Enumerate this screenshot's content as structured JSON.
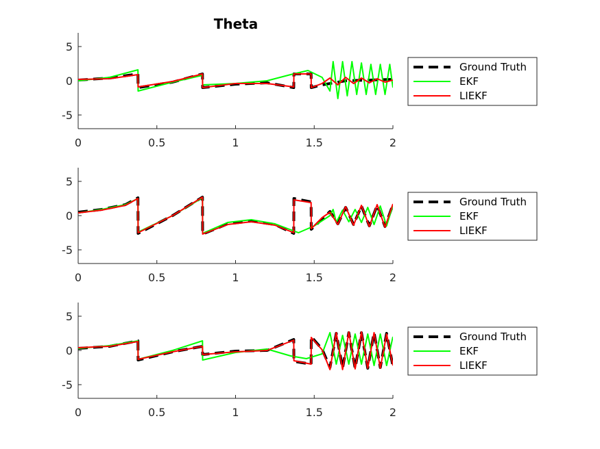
{
  "figure": {
    "title": "Theta"
  },
  "legend_entries": [
    {
      "label": "Ground Truth",
      "color": "#000000",
      "style": "dashed"
    },
    {
      "label": "EKF",
      "color": "#00ff00",
      "style": "solid"
    },
    {
      "label": "LIEKF",
      "color": "#ff0000",
      "style": "solid"
    }
  ],
  "colors": {
    "ground_truth": "#000000",
    "ekf": "#00ff00",
    "liekf": "#ff0000",
    "axis": "#262626"
  },
  "chart_data": [
    {
      "type": "line",
      "title": "Theta",
      "xlim": [
        0,
        2
      ],
      "ylim": [
        -7,
        7
      ],
      "x_ticks": [
        0,
        0.5,
        1,
        1.5,
        2
      ],
      "x_tick_labels": [
        "0",
        "0.5",
        "1",
        "1.5",
        "2"
      ],
      "y_ticks": [
        -5,
        0,
        5
      ],
      "y_tick_labels": [
        "-5",
        "0",
        "5"
      ],
      "legend_position": "right",
      "series": [
        {
          "name": "Ground Truth",
          "color": "#000000",
          "dashed": true,
          "points": [
            [
              0,
              0.1
            ],
            [
              0.2,
              0.4
            ],
            [
              0.38,
              1.0
            ],
            [
              0.381,
              -1.0
            ],
            [
              0.6,
              -0.2
            ],
            [
              0.79,
              1.0
            ],
            [
              0.791,
              -1.0
            ],
            [
              1.0,
              -0.5
            ],
            [
              1.2,
              -0.3
            ],
            [
              1.37,
              -1.0
            ],
            [
              1.371,
              1.0
            ],
            [
              1.48,
              1.0
            ],
            [
              1.481,
              -1.0
            ],
            [
              1.55,
              -0.6
            ],
            [
              1.7,
              0.0
            ],
            [
              2.0,
              0.2
            ]
          ]
        },
        {
          "name": "EKF",
          "color": "#00ff00",
          "dashed": false,
          "points": [
            [
              0,
              0.0
            ],
            [
              0.2,
              0.5
            ],
            [
              0.38,
              1.6
            ],
            [
              0.381,
              -1.5
            ],
            [
              0.6,
              -0.2
            ],
            [
              0.79,
              0.8
            ],
            [
              0.791,
              -0.6
            ],
            [
              1.0,
              -0.4
            ],
            [
              1.2,
              0.0
            ],
            [
              1.35,
              0.9
            ],
            [
              1.46,
              1.5
            ],
            [
              1.55,
              0.5
            ],
            [
              1.6,
              -1.5
            ],
            [
              1.62,
              2.8
            ],
            [
              1.65,
              -2.6
            ],
            [
              1.68,
              2.8
            ],
            [
              1.71,
              -2.2
            ],
            [
              1.74,
              2.8
            ],
            [
              1.77,
              -2.0
            ],
            [
              1.8,
              2.6
            ],
            [
              1.83,
              -2.0
            ],
            [
              1.86,
              2.4
            ],
            [
              1.89,
              -2.0
            ],
            [
              1.92,
              2.4
            ],
            [
              1.95,
              -2.0
            ],
            [
              1.98,
              2.4
            ],
            [
              2.0,
              -1.0
            ]
          ]
        },
        {
          "name": "LIEKF",
          "color": "#ff0000",
          "dashed": false,
          "points": [
            [
              0,
              0.2
            ],
            [
              0.2,
              0.3
            ],
            [
              0.38,
              0.9
            ],
            [
              0.381,
              -0.9
            ],
            [
              0.6,
              -0.1
            ],
            [
              0.79,
              1.0
            ],
            [
              0.791,
              -1.0
            ],
            [
              1.0,
              -0.4
            ],
            [
              1.2,
              -0.4
            ],
            [
              1.37,
              -0.9
            ],
            [
              1.371,
              1.0
            ],
            [
              1.48,
              1.0
            ],
            [
              1.481,
              -1.0
            ],
            [
              1.55,
              -0.4
            ],
            [
              1.6,
              0.4
            ],
            [
              1.65,
              -0.6
            ],
            [
              1.7,
              0.5
            ],
            [
              1.75,
              -0.4
            ],
            [
              1.8,
              0.4
            ],
            [
              1.85,
              -0.3
            ],
            [
              1.9,
              0.3
            ],
            [
              1.95,
              -0.2
            ],
            [
              2.0,
              0.1
            ]
          ]
        }
      ]
    },
    {
      "type": "line",
      "title": "",
      "xlim": [
        0,
        2
      ],
      "ylim": [
        -7,
        7
      ],
      "x_ticks": [
        0,
        0.5,
        1,
        1.5,
        2
      ],
      "x_tick_labels": [
        "0",
        "0.5",
        "1",
        "1.5",
        "2"
      ],
      "y_ticks": [
        -5,
        0,
        5
      ],
      "y_tick_labels": [
        "-5",
        "0",
        "5"
      ],
      "legend_position": "right",
      "series": [
        {
          "name": "Ground Truth",
          "color": "#000000",
          "dashed": true,
          "points": [
            [
              0,
              0.5
            ],
            [
              0.15,
              0.9
            ],
            [
              0.3,
              1.6
            ],
            [
              0.38,
              2.6
            ],
            [
              0.381,
              -2.6
            ],
            [
              0.6,
              0.0
            ],
            [
              0.79,
              2.7
            ],
            [
              0.791,
              -2.7
            ],
            [
              0.95,
              -1.2
            ],
            [
              1.1,
              -0.8
            ],
            [
              1.25,
              -1.3
            ],
            [
              1.37,
              -2.6
            ],
            [
              1.371,
              2.5
            ],
            [
              1.48,
              2.0
            ],
            [
              1.481,
              -2.0
            ],
            [
              1.55,
              -0.5
            ],
            [
              1.6,
              0.6
            ],
            [
              1.65,
              -1.2
            ],
            [
              1.7,
              1.2
            ],
            [
              1.75,
              -1.3
            ],
            [
              1.8,
              1.4
            ],
            [
              1.85,
              -1.5
            ],
            [
              1.9,
              1.5
            ],
            [
              1.95,
              -1.6
            ],
            [
              2.0,
              1.6
            ]
          ]
        },
        {
          "name": "EKF",
          "color": "#00ff00",
          "dashed": false,
          "points": [
            [
              0,
              0.4
            ],
            [
              0.15,
              0.9
            ],
            [
              0.3,
              1.6
            ],
            [
              0.38,
              2.5
            ],
            [
              0.381,
              -2.4
            ],
            [
              0.6,
              0.0
            ],
            [
              0.79,
              2.6
            ],
            [
              0.791,
              -2.6
            ],
            [
              0.95,
              -1.0
            ],
            [
              1.1,
              -0.6
            ],
            [
              1.25,
              -1.2
            ],
            [
              1.4,
              -2.5
            ],
            [
              1.5,
              -1.5
            ],
            [
              1.6,
              0.0
            ],
            [
              1.62,
              0.9
            ],
            [
              1.64,
              -1.0
            ],
            [
              1.68,
              0.8
            ],
            [
              1.72,
              -0.9
            ],
            [
              1.76,
              0.9
            ],
            [
              1.8,
              -1.0
            ],
            [
              1.84,
              1.2
            ],
            [
              1.88,
              -1.3
            ],
            [
              1.92,
              1.4
            ],
            [
              1.96,
              -1.5
            ],
            [
              2.0,
              1.5
            ]
          ]
        },
        {
          "name": "LIEKF",
          "color": "#ff0000",
          "dashed": false,
          "points": [
            [
              0,
              0.4
            ],
            [
              0.15,
              0.8
            ],
            [
              0.3,
              1.5
            ],
            [
              0.38,
              2.5
            ],
            [
              0.381,
              -2.5
            ],
            [
              0.6,
              0.0
            ],
            [
              0.79,
              2.7
            ],
            [
              0.791,
              -2.7
            ],
            [
              0.95,
              -1.3
            ],
            [
              1.1,
              -0.9
            ],
            [
              1.25,
              -1.4
            ],
            [
              1.37,
              -2.5
            ],
            [
              1.371,
              2.3
            ],
            [
              1.48,
              1.9
            ],
            [
              1.481,
              -1.9
            ],
            [
              1.55,
              -0.3
            ],
            [
              1.6,
              0.5
            ],
            [
              1.65,
              -1.3
            ],
            [
              1.7,
              1.3
            ],
            [
              1.75,
              -1.4
            ],
            [
              1.8,
              1.5
            ],
            [
              1.85,
              -1.6
            ],
            [
              1.9,
              1.6
            ],
            [
              1.95,
              -1.7
            ],
            [
              2.0,
              1.7
            ]
          ]
        }
      ]
    },
    {
      "type": "line",
      "title": "",
      "xlim": [
        0,
        2
      ],
      "ylim": [
        -7,
        7
      ],
      "x_ticks": [
        0,
        0.5,
        1,
        1.5,
        2
      ],
      "x_tick_labels": [
        "0",
        "0.5",
        "1",
        "1.5",
        "2"
      ],
      "y_ticks": [
        -5,
        0,
        5
      ],
      "y_tick_labels": [
        "-5",
        "0",
        "5"
      ],
      "legend_position": "right",
      "series": [
        {
          "name": "Ground Truth",
          "color": "#000000",
          "dashed": true,
          "points": [
            [
              0,
              0.3
            ],
            [
              0.2,
              0.6
            ],
            [
              0.38,
              1.4
            ],
            [
              0.381,
              -1.4
            ],
            [
              0.6,
              -0.2
            ],
            [
              0.79,
              0.6
            ],
            [
              0.791,
              -0.6
            ],
            [
              1.0,
              -0.1
            ],
            [
              1.2,
              0.0
            ],
            [
              1.37,
              1.6
            ],
            [
              1.371,
              -1.6
            ],
            [
              1.48,
              -2.0
            ],
            [
              1.481,
              2.0
            ],
            [
              1.55,
              0.2
            ],
            [
              1.6,
              -2.5
            ],
            [
              1.64,
              2.5
            ],
            [
              1.68,
              -2.6
            ],
            [
              1.72,
              2.6
            ],
            [
              1.76,
              -2.6
            ],
            [
              1.8,
              2.6
            ],
            [
              1.84,
              -2.6
            ],
            [
              1.88,
              2.6
            ],
            [
              1.92,
              -2.5
            ],
            [
              1.96,
              2.5
            ],
            [
              2.0,
              -2.3
            ]
          ]
        },
        {
          "name": "EKF",
          "color": "#00ff00",
          "dashed": false,
          "points": [
            [
              0,
              0.3
            ],
            [
              0.2,
              0.7
            ],
            [
              0.38,
              1.4
            ],
            [
              0.381,
              -1.3
            ],
            [
              0.6,
              0.0
            ],
            [
              0.79,
              1.4
            ],
            [
              0.791,
              -1.4
            ],
            [
              1.0,
              -0.3
            ],
            [
              1.2,
              0.2
            ],
            [
              1.35,
              -0.8
            ],
            [
              1.45,
              -1.2
            ],
            [
              1.55,
              -0.5
            ],
            [
              1.6,
              2.6
            ],
            [
              1.64,
              -2.0
            ],
            [
              1.68,
              2.2
            ],
            [
              1.72,
              -2.0
            ],
            [
              1.76,
              2.4
            ],
            [
              1.8,
              -2.0
            ],
            [
              1.84,
              2.4
            ],
            [
              1.88,
              -2.2
            ],
            [
              1.92,
              2.4
            ],
            [
              1.96,
              -2.2
            ],
            [
              2.0,
              2.0
            ]
          ]
        },
        {
          "name": "LIEKF",
          "color": "#ff0000",
          "dashed": false,
          "points": [
            [
              0,
              0.4
            ],
            [
              0.2,
              0.6
            ],
            [
              0.38,
              1.3
            ],
            [
              0.381,
              -1.3
            ],
            [
              0.6,
              -0.2
            ],
            [
              0.79,
              0.6
            ],
            [
              0.791,
              -0.6
            ],
            [
              1.0,
              -0.2
            ],
            [
              1.2,
              0.0
            ],
            [
              1.37,
              1.5
            ],
            [
              1.371,
              -1.5
            ],
            [
              1.48,
              -2.0
            ],
            [
              1.481,
              1.9
            ],
            [
              1.55,
              0.1
            ],
            [
              1.6,
              -2.8
            ],
            [
              1.64,
              2.6
            ],
            [
              1.68,
              -2.8
            ],
            [
              1.72,
              2.7
            ],
            [
              1.76,
              -2.7
            ],
            [
              1.8,
              2.7
            ],
            [
              1.84,
              -2.6
            ],
            [
              1.88,
              2.6
            ],
            [
              1.92,
              -2.6
            ],
            [
              1.96,
              2.4
            ],
            [
              2.0,
              -2.2
            ]
          ]
        }
      ]
    }
  ]
}
